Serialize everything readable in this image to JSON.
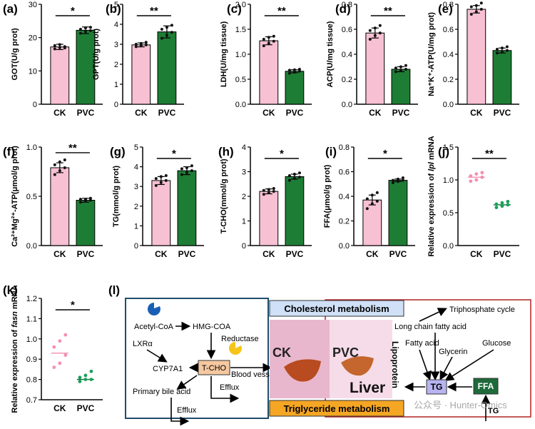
{
  "colors": {
    "ck": "#f7c0d3",
    "pvc": "#1e7d35",
    "ck_dot": "#f48fb1",
    "pvc_dot": "#1aa05a",
    "outline": "#000000"
  },
  "chart_data": [
    {
      "panel": "(a)",
      "type": "bar",
      "categories": [
        "CK",
        "PVC"
      ],
      "values": [
        17.2,
        22.2
      ],
      "errors": [
        0.8,
        1.0
      ],
      "points": [
        [
          16.6,
          17.0,
          17.3,
          17.6,
          17.9,
          16.9
        ],
        [
          21.3,
          21.8,
          22.1,
          22.5,
          22.9,
          23.1
        ]
      ],
      "ylabel": "GOT(U/g prot)",
      "ylim": [
        0,
        30
      ],
      "yticks": [
        0,
        10,
        20,
        30
      ],
      "sig": "*"
    },
    {
      "panel": "(b)",
      "type": "bar",
      "categories": [
        "CK",
        "PVC"
      ],
      "values": [
        2.97,
        3.62
      ],
      "errors": [
        0.1,
        0.3
      ],
      "points": [
        [
          2.88,
          2.93,
          2.97,
          3.0,
          3.04,
          3.1
        ],
        [
          3.3,
          3.45,
          3.6,
          3.75,
          3.85,
          3.95
        ]
      ],
      "ylabel": "GPT(U/g prot)",
      "ylim": [
        0,
        5
      ],
      "yticks": [
        0,
        1,
        2,
        3,
        4,
        5
      ],
      "sig": "**"
    },
    {
      "panel": "(c)",
      "type": "bar",
      "categories": [
        "CK",
        "PVC"
      ],
      "values": [
        1.27,
        0.66
      ],
      "errors": [
        0.08,
        0.03
      ],
      "points": [
        [
          1.17,
          1.22,
          1.26,
          1.3,
          1.34,
          1.36
        ],
        [
          0.62,
          0.64,
          0.66,
          0.68,
          0.69,
          0.7
        ]
      ],
      "ylabel": "LDH(U/mg tissue)",
      "ylim": [
        0,
        2.0
      ],
      "yticks": [
        0.0,
        0.5,
        1.0,
        1.5,
        2.0
      ],
      "sig": "**"
    },
    {
      "panel": "(d)",
      "type": "bar",
      "categories": [
        "CK",
        "PVC"
      ],
      "values": [
        0.57,
        0.28
      ],
      "errors": [
        0.04,
        0.02
      ],
      "points": [
        [
          0.52,
          0.55,
          0.57,
          0.59,
          0.61,
          0.63
        ],
        [
          0.26,
          0.27,
          0.28,
          0.29,
          0.3,
          0.31
        ]
      ],
      "ylabel": "ACP(U/mg tissue)",
      "ylim": [
        0,
        0.8
      ],
      "yticks": [
        0.0,
        0.2,
        0.4,
        0.6,
        0.8
      ],
      "sig": "**"
    },
    {
      "panel": "(e)",
      "type": "bar",
      "categories": [
        "CK",
        "PVC"
      ],
      "values": [
        0.76,
        0.43
      ],
      "errors": [
        0.03,
        0.02
      ],
      "points": [
        [
          0.72,
          0.74,
          0.76,
          0.78,
          0.79,
          0.81
        ],
        [
          0.41,
          0.42,
          0.43,
          0.44,
          0.45,
          0.46
        ]
      ],
      "ylabel": "Na⁺K⁺-ATP(U/mg prot)",
      "ylim": [
        0,
        0.8
      ],
      "yticks": [
        0.0,
        0.2,
        0.4,
        0.6,
        0.8
      ],
      "sig": "**"
    },
    {
      "panel": "(f)",
      "type": "bar",
      "categories": [
        "CK",
        "PVC"
      ],
      "values": [
        0.79,
        0.46
      ],
      "errors": [
        0.05,
        0.02
      ],
      "points": [
        [
          0.72,
          0.76,
          0.79,
          0.82,
          0.85,
          0.87
        ],
        [
          0.44,
          0.45,
          0.46,
          0.47,
          0.47,
          0.48
        ]
      ],
      "ylabel": "Ca²⁺Mg²⁺-ATP(μmol/g prot)",
      "ylim": [
        0,
        1.0
      ],
      "yticks": [
        0.0,
        0.5,
        1.0
      ],
      "sig": "**"
    },
    {
      "panel": "(g)",
      "type": "bar",
      "categories": [
        "CK",
        "PVC"
      ],
      "values": [
        3.3,
        3.8
      ],
      "errors": [
        0.2,
        0.2
      ],
      "points": [
        [
          3.05,
          3.2,
          3.3,
          3.4,
          3.5,
          3.55
        ],
        [
          3.6,
          3.7,
          3.8,
          3.9,
          3.95,
          4.05
        ]
      ],
      "ylabel": "TG(mmol/g prot)",
      "ylim": [
        0,
        5
      ],
      "yticks": [
        0,
        1,
        2,
        3,
        4,
        5
      ],
      "sig": "*"
    },
    {
      "panel": "(h)",
      "type": "bar",
      "categories": [
        "CK",
        "PVC"
      ],
      "values": [
        2.2,
        2.8
      ],
      "errors": [
        0.1,
        0.1
      ],
      "points": [
        [
          2.08,
          2.15,
          2.2,
          2.24,
          2.28,
          2.32
        ],
        [
          2.65,
          2.72,
          2.78,
          2.84,
          2.9,
          2.95
        ]
      ],
      "ylabel": "T-CHO(mmol/g prot)",
      "ylim": [
        0,
        4
      ],
      "yticks": [
        0,
        1,
        2,
        3,
        4
      ],
      "sig": "*"
    },
    {
      "panel": "(i)",
      "type": "bar",
      "categories": [
        "CK",
        "PVC"
      ],
      "values": [
        0.37,
        0.53
      ],
      "errors": [
        0.04,
        0.01
      ],
      "points": [
        [
          0.3,
          0.34,
          0.36,
          0.38,
          0.41,
          0.43
        ],
        [
          0.51,
          0.52,
          0.53,
          0.53,
          0.54,
          0.55
        ]
      ],
      "ylabel": "FFA(μmol/g prot)",
      "ylim": [
        0,
        0.8
      ],
      "yticks": [
        0.0,
        0.2,
        0.4,
        0.6,
        0.8
      ],
      "sig": "*"
    },
    {
      "panel": "(j)",
      "type": "scatter",
      "categories": [
        "CK",
        "PVC"
      ],
      "values": [
        1.04,
        0.62
      ],
      "points": [
        [
          0.98,
          1.0,
          1.04,
          1.06,
          1.09,
          1.11
        ],
        [
          0.58,
          0.6,
          0.62,
          0.63,
          0.65,
          0.67
        ]
      ],
      "ylabel_plain": "Relative expression of ",
      "ylabel_italic": "lpl",
      "ylabel_tail": " mRNA",
      "ylim": [
        0,
        1.5
      ],
      "yticks": [
        0.0,
        0.5,
        1.0,
        1.5
      ],
      "sig": "**"
    },
    {
      "panel": "(k)",
      "type": "scatter",
      "categories": [
        "CK",
        "PVC"
      ],
      "values": [
        0.93,
        0.8
      ],
      "points": [
        [
          0.86,
          0.88,
          0.92,
          0.96,
          0.99,
          1.02
        ],
        [
          0.79,
          0.8,
          0.8,
          0.81,
          0.82,
          0.84
        ]
      ],
      "ylabel_plain": "Relative expression of ",
      "ylabel_italic": "fasn",
      "ylabel_tail": " mRNA",
      "ylim": [
        0.7,
        1.2
      ],
      "yticks": [
        0.7,
        0.8,
        0.9,
        1.0,
        1.1,
        1.2
      ],
      "sig": "*"
    }
  ],
  "diagram": {
    "label": "(l)",
    "cholesterol_title": "Cholesterol metabolism",
    "triglyceride_title": "Triglyceride metabolism",
    "acetyl": "Acetyl-CoA",
    "hmg": "HMG-COA",
    "reductase": "Reductase",
    "lxr": "LXRα",
    "cyp": "CYP7A1",
    "tcho": "T-CHO",
    "blood": "Blood vessel",
    "efflux1": "Efflux",
    "bile": "Primary bile acid",
    "efflux2": "Efflux",
    "ck": "CK",
    "pvc": "PVC",
    "liver": "Liver",
    "lipoprotein": "Lipoprotein",
    "triphosphate": "Triphosphate cycle",
    "lcfa": "Long chain fatty acid",
    "fatty": "Fatty acid",
    "glycerin": "Glycerin",
    "glucose": "Glucose",
    "tg": "TG",
    "ffa": "FFA",
    "tg2": "TG",
    "watermark": "公众号 · Hunter-Omics"
  }
}
